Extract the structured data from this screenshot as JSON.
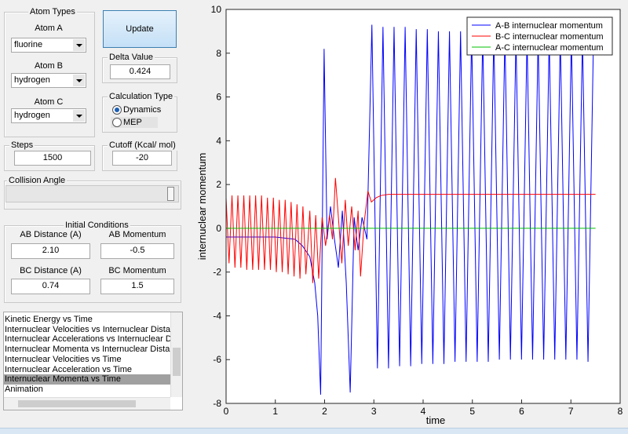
{
  "controls": {
    "atom_types": {
      "title": "Atom Types",
      "atoms": [
        {
          "label": "Atom A",
          "value": "fluorine"
        },
        {
          "label": "Atom B",
          "value": "hydrogen"
        },
        {
          "label": "Atom C",
          "value": "hydrogen"
        }
      ]
    },
    "update_button": "Update",
    "delta": {
      "title": "Delta Value",
      "value": "0.424"
    },
    "calculation_type": {
      "title": "Calculation Type",
      "options": [
        "Dynamics",
        "MEP"
      ],
      "selected": 0
    },
    "steps": {
      "title": "Steps",
      "value": "1500"
    },
    "cutoff": {
      "title": "Cutoff (Kcal/ mol)",
      "value": "-20"
    },
    "collision_angle": {
      "title": "Collision Angle"
    },
    "initial_conditions": {
      "title": "Initial Conditions",
      "fields": [
        {
          "label": "AB Distance (A)",
          "value": "2.10"
        },
        {
          "label": "AB Momentum",
          "value": "-0.5"
        },
        {
          "label": "BC Distance (A)",
          "value": "0.74"
        },
        {
          "label": "BC Momentum",
          "value": "1.5"
        }
      ]
    },
    "plot_list": {
      "items": [
        "Kinetic Energy vs Time",
        "Internuclear Velocities vs Internuclear Distance",
        "Internuclear Accelerations vs Internuclear Distance",
        "Internuclear Momenta vs Internuclear Distance",
        "Internuclear Velocities vs Time",
        "Internuclear Acceleration vs Time",
        "Internuclear Momenta vs Time",
        "Animation"
      ],
      "selected": 6
    }
  },
  "chart_data": {
    "type": "line",
    "x_label": "time",
    "y_label": "internuclear momentum",
    "xlim": [
      0,
      8
    ],
    "ylim": [
      -8,
      10
    ],
    "xticks": [
      0,
      1,
      2,
      3,
      4,
      5,
      6,
      7,
      8
    ],
    "yticks": [
      -8,
      -6,
      -4,
      -2,
      0,
      2,
      4,
      6,
      8,
      10
    ],
    "legend": "northeast",
    "grid": false,
    "series": [
      {
        "name": "A-B internuclear momentum",
        "color": "#0000ff",
        "x": [
          0,
          0.5,
          1.0,
          1.4,
          1.55,
          1.7,
          1.8,
          1.86,
          1.92,
          1.99,
          2.05,
          2.12,
          2.2,
          2.28,
          2.36,
          2.44,
          2.52,
          2.6,
          2.68,
          2.76,
          2.86,
          2.96,
          3.0725,
          3.185,
          3.2975,
          3.41,
          3.5225,
          3.635,
          3.7475,
          3.86,
          3.9725,
          4.085,
          4.1975,
          4.31,
          4.4225,
          4.535,
          4.6475,
          4.76,
          4.8725,
          4.985,
          5.0975,
          5.21,
          5.3225,
          5.435,
          5.5475,
          5.66,
          5.7725,
          5.885,
          5.9975,
          6.11,
          6.2225,
          6.335,
          6.4475,
          6.56,
          6.6725,
          6.785,
          6.8975,
          7.01,
          7.1225,
          7.235,
          7.3475,
          7.46
        ],
        "values": [
          -0.4,
          -0.4,
          -0.4,
          -0.5,
          -0.8,
          -1.3,
          -2.5,
          -4,
          -7.6,
          8.2,
          -0.5,
          1.0,
          -0.5,
          -1.8,
          0.8,
          -2.5,
          -7.5,
          0.5,
          -1.0,
          0.5,
          -0.5,
          9.3,
          -6.4,
          9.2,
          -6.4,
          9.2,
          -6.3,
          9.2,
          -6.3,
          9.1,
          -6.2,
          9.1,
          -6.2,
          9.0,
          -6.2,
          9.0,
          -6.1,
          9.0,
          -6.1,
          8.9,
          -6.1,
          8.9,
          -6.1,
          8.9,
          -6.0,
          8.9,
          -6.0,
          8.8,
          -6.0,
          8.8,
          -6.0,
          8.8,
          -6.0,
          8.8,
          -6.0,
          8.8,
          -6.0,
          8.8,
          -6.0,
          8.8,
          -6.1,
          8.9
        ]
      },
      {
        "name": "B-C internuclear momentum",
        "color": "#ff0000",
        "x": [
          0,
          0.06,
          0.12,
          0.18,
          0.24,
          0.3,
          0.36,
          0.42,
          0.48,
          0.54,
          0.6,
          0.66,
          0.72,
          0.78,
          0.84,
          0.9,
          0.96,
          1.02,
          1.08,
          1.14,
          1.2,
          1.26,
          1.32,
          1.38,
          1.44,
          1.5,
          1.56,
          1.62,
          1.7,
          1.76,
          1.82,
          1.88,
          1.95,
          2.02,
          2.1,
          2.16,
          2.22,
          2.28,
          2.35,
          2.42,
          2.48,
          2.55,
          2.62,
          2.68,
          2.73,
          2.8,
          2.88,
          2.95,
          3.05,
          3.15,
          3.3,
          4,
          5,
          6,
          7,
          7.5
        ],
        "values": [
          1.4,
          -1.6,
          1.5,
          -1.8,
          1.5,
          -1.8,
          1.5,
          -1.9,
          1.5,
          -1.9,
          1.5,
          -1.9,
          1.5,
          -1.9,
          1.4,
          -1.9,
          1.4,
          -2.0,
          1.3,
          -2.0,
          1.3,
          -2.1,
          1.2,
          -2.2,
          1.1,
          -2.3,
          1.0,
          -2.1,
          0.8,
          -2.5,
          0.6,
          -2.3,
          0.5,
          -0.8,
          0.6,
          -0.5,
          2.3,
          0.5,
          -1.6,
          1.3,
          -0.8,
          1.0,
          -1.0,
          0.8,
          -2.2,
          0.2,
          1.7,
          1.2,
          1.4,
          1.5,
          1.55,
          1.55,
          1.55,
          1.55,
          1.55,
          1.55
        ]
      },
      {
        "name": "A-C internuclear momentum",
        "color": "#00c000",
        "x": [
          0,
          7.5
        ],
        "values": [
          0,
          0
        ]
      }
    ]
  }
}
